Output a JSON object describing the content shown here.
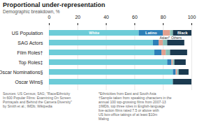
{
  "chart_data": {
    "type": "bar",
    "orientation": "horizontal",
    "stacked": true,
    "title": "Proportional under-representation",
    "subtitle": "Demographic breakdown, %",
    "categories": [
      "US Population",
      "SAG Actors",
      "Film Roles†",
      "Top Roles‡",
      "Oscar Nominations§",
      "Oscar Wins§"
    ],
    "series": [
      {
        "name": "White",
        "color": "#6dccd8",
        "values": [
          63,
          73,
          74,
          83,
          87,
          87
        ]
      },
      {
        "name": "Latino",
        "color": "#2d7fb8",
        "values": [
          17,
          4,
          5,
          3,
          2,
          0
        ]
      },
      {
        "name": "Asian*",
        "color": "#e0a090",
        "values": [
          5,
          3,
          3,
          1,
          1,
          0
        ]
      },
      {
        "name": "Others",
        "color": "#85c0b8",
        "values": [
          2,
          3,
          3,
          1,
          1,
          0
        ]
      },
      {
        "name": "Black",
        "color": "#1b3a50",
        "values": [
          13,
          12,
          12,
          8,
          7,
          13
        ]
      }
    ],
    "xlim": [
      0,
      100
    ],
    "xticks": [
      0,
      20,
      40,
      60,
      80,
      100
    ],
    "grid": true,
    "source": "Sources: US Census; SAG; \"Race/Ethnicity\nIn 600 Popular Films: Examining On Screen\nPortrayals and Behind the Camera Diversity\"\nby Smith et al.; IMDb; Wikipedia",
    "footnote": "*Ethnicities from East and South Asia\n†Sample taken from speaking characters in the\nannual 100 top-grossing films from 2007-13\n‡IMDb, top three roles in English-language\nlive-action films rated 7.5 or above with\nUS box-office takings of at least $10m\nMaling"
  }
}
